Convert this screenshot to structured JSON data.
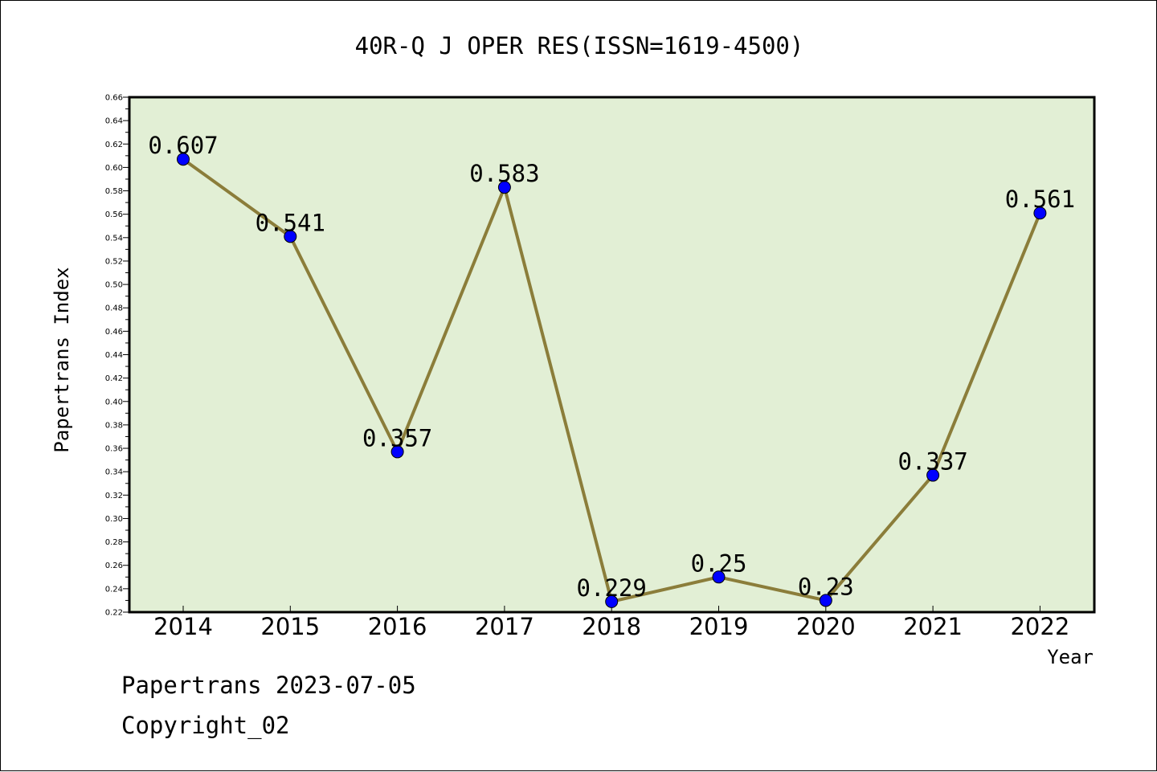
{
  "chart_data": {
    "type": "line",
    "title": "40R-Q J OPER RES(ISSN=1619-4500)",
    "xlabel": "Year",
    "ylabel": "Papertrans Index",
    "categories": [
      "2014",
      "2015",
      "2016",
      "2017",
      "2018",
      "2019",
      "2020",
      "2021",
      "2022"
    ],
    "series": [
      {
        "values": [
          0.607,
          0.541,
          0.357,
          0.583,
          0.229,
          0.25,
          0.23,
          0.337,
          0.561
        ],
        "labels": [
          "0.607",
          "0.541",
          "0.357",
          "0.583",
          "0.229",
          "0.25",
          "0.23",
          "0.337",
          "0.561"
        ]
      }
    ],
    "ylim": [
      0.22,
      0.66
    ],
    "yticks": [
      "0.22",
      "0.24",
      "0.26",
      "0.28",
      "0.30",
      "0.32",
      "0.34",
      "0.36",
      "0.38",
      "0.40",
      "0.42",
      "0.44",
      "0.46",
      "0.48",
      "0.50",
      "0.52",
      "0.54",
      "0.56",
      "0.58",
      "0.60",
      "0.62",
      "0.64",
      "0.66"
    ],
    "grid": false,
    "colors": {
      "plot_background": "#e2efd5",
      "line": "#8b7d3a",
      "marker": "#0000ff"
    }
  },
  "footer": {
    "line1": "Papertrans 2023-07-05",
    "line2": "Copyright_02"
  }
}
